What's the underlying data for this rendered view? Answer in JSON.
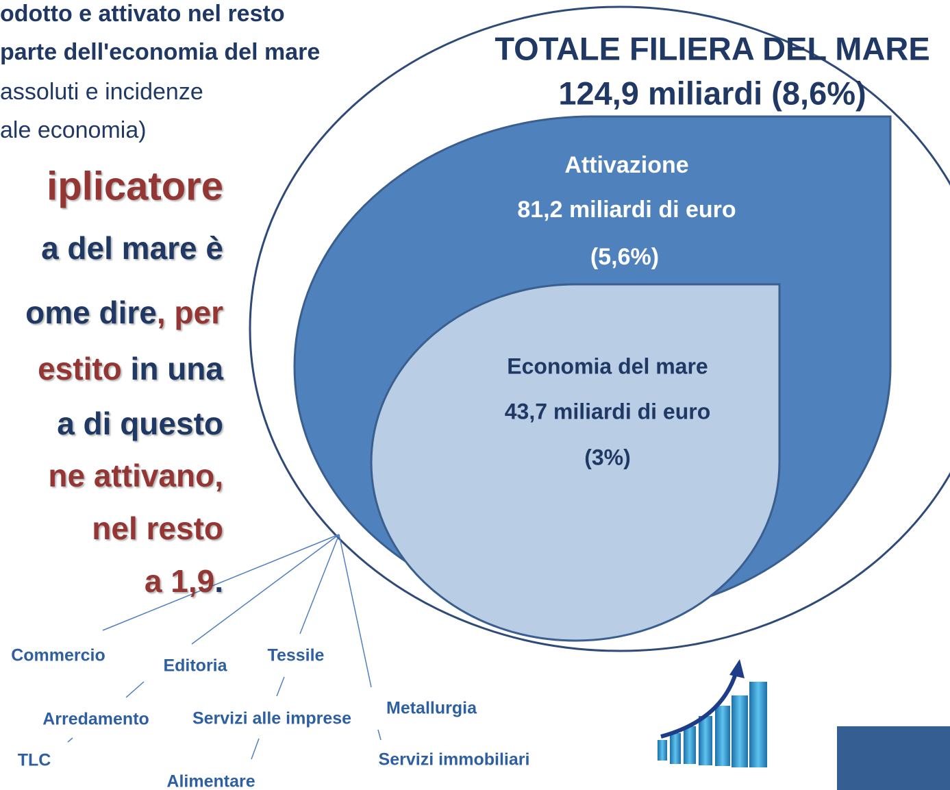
{
  "header": {
    "lines": [
      "odotto e attivato nel resto",
      "parte dell'economia del mare",
      "assoluti e incidenze",
      "ale economia)"
    ]
  },
  "heading": "iplicatore",
  "paragraph": [
    [
      {
        "text": "a del mare è",
        "color": "#1f3864"
      }
    ],
    [
      {
        "text": "ome dire",
        "color": "#1f3864"
      },
      {
        "text": ", per",
        "color": "#943634"
      }
    ],
    [
      {
        "text": "estito",
        "color": "#943634"
      },
      {
        "text": " in una",
        "color": "#1f3864"
      }
    ],
    [
      {
        "text": "a di questo",
        "color": "#1f3864"
      }
    ],
    [
      {
        "text": "ne attivano,",
        "color": "#943634"
      }
    ],
    [
      {
        "text": "nel resto",
        "color": "#943634"
      }
    ],
    [
      {
        "text": "a 1,9",
        "color": "#943634"
      },
      {
        "text": ".",
        "color": "#1f3864"
      }
    ]
  ],
  "total": {
    "title": "TOTALE FILIERA DEL MARE",
    "value": "124,9 miliardi (8,6%)"
  },
  "activation": {
    "title": "Attivazione",
    "value": "81,2 miliardi di euro",
    "share": "(5,6%)"
  },
  "sea_economy": {
    "title": "Economia del mare",
    "value": "43,7 miliardi di euro",
    "share": "(3%)"
  },
  "sectors": [
    "Commercio",
    "Editoria",
    "Tessile",
    "Arredamento",
    "Servizi alle imprese",
    "Metallurgia",
    "TLC",
    "Alimentare",
    "Servizi immobiliari"
  ]
}
